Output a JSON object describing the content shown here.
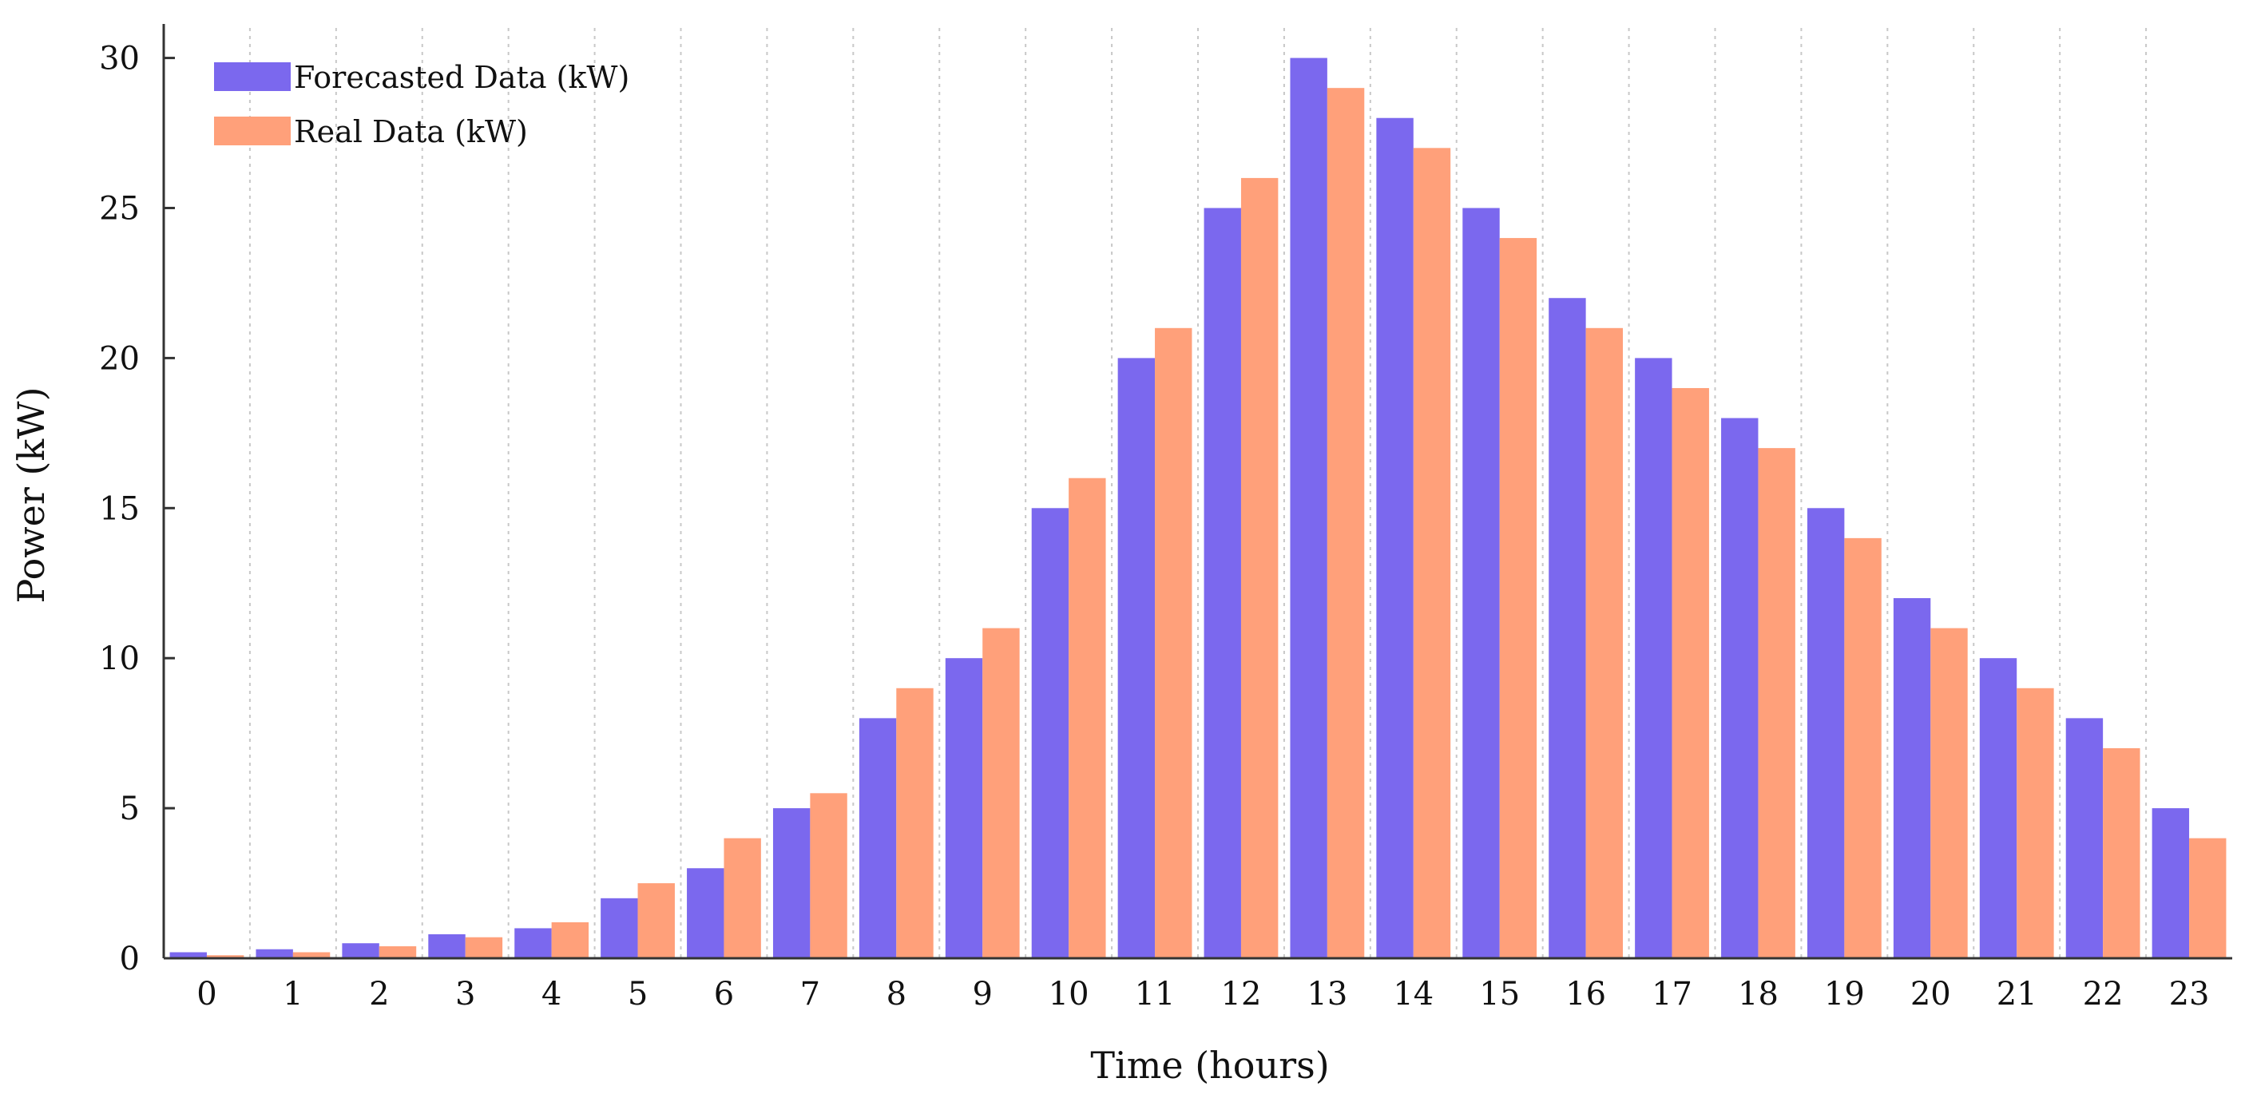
{
  "chart_data": {
    "type": "bar",
    "title": "",
    "xlabel": "Time (hours)",
    "ylabel": "Power (kW)",
    "ylim": [
      0,
      31
    ],
    "yticks": [
      0,
      5,
      10,
      15,
      20,
      25,
      30
    ],
    "grid": "vertical dashed lines between categories",
    "legend_position": "top-left",
    "categories": [
      "0",
      "1",
      "2",
      "3",
      "4",
      "5",
      "6",
      "7",
      "8",
      "9",
      "10",
      "11",
      "12",
      "13",
      "14",
      "15",
      "16",
      "17",
      "18",
      "19",
      "20",
      "21",
      "22",
      "23"
    ],
    "series": [
      {
        "name": "Forecasted Data (kW)",
        "color": "#7B68EE",
        "values": [
          0.2,
          0.3,
          0.5,
          0.8,
          1.0,
          2.0,
          3.0,
          5.0,
          8.0,
          10.0,
          15.0,
          20.0,
          25.0,
          30.0,
          28.0,
          25.0,
          22.0,
          20.0,
          18.0,
          15.0,
          12.0,
          10.0,
          8.0,
          5.0
        ]
      },
      {
        "name": "Real Data (kW)",
        "color": "#FFA07A",
        "values": [
          0.1,
          0.2,
          0.4,
          0.7,
          1.2,
          2.5,
          4.0,
          5.5,
          9.0,
          11.0,
          16.0,
          21.0,
          26.0,
          29.0,
          27.0,
          24.0,
          21.0,
          19.0,
          17.0,
          14.0,
          11.0,
          9.0,
          7.0,
          4.0
        ]
      }
    ]
  }
}
